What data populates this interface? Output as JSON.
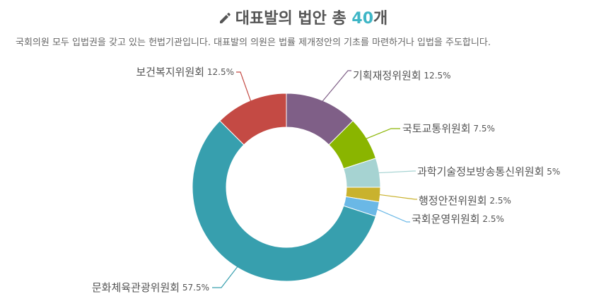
{
  "header": {
    "title_prefix": "대표발의 법안 총 ",
    "title_count": "40",
    "title_suffix": "개",
    "subtitle": "국회의원 모두 입법권을 갖고 있는 헌법기관입니다. 대표발의 의원은 법률 제개정안의 기초를 마련하거나 입법을 주도합니다.",
    "icon": "pencil-icon"
  },
  "chart_data": {
    "type": "pie",
    "donut": true,
    "categories": [
      "기획재정위원회",
      "국토교통위원회",
      "과학기술정보방송통신위원회",
      "행정안전위원회",
      "국회운영위원회",
      "문화체육관광위원회",
      "보건복지위원회"
    ],
    "values": [
      12.5,
      7.5,
      5,
      2.5,
      2.5,
      57.5,
      12.5
    ],
    "value_labels": [
      "12.5%",
      "7.5%",
      "5%",
      "2.5%",
      "2.5%",
      "57.5%",
      "12.5%"
    ],
    "colors": [
      "#7f5f87",
      "#8ab500",
      "#a6d3d2",
      "#c9b22e",
      "#6ab8e6",
      "#379fae",
      "#c44a44"
    ]
  }
}
